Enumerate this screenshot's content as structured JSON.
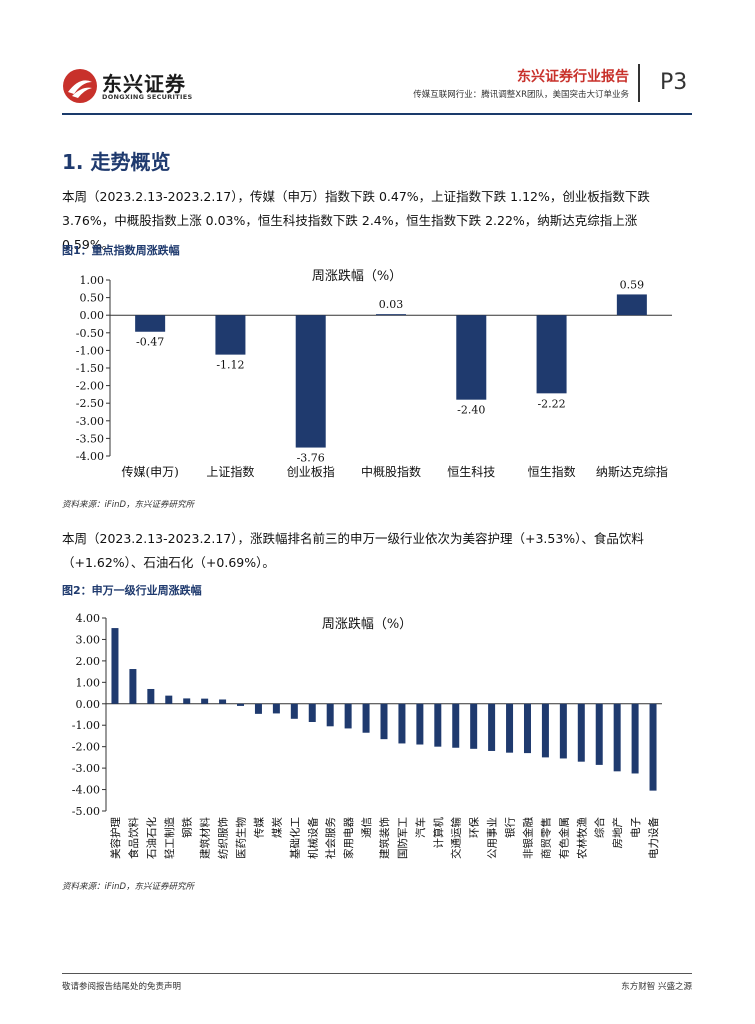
{
  "header": {
    "logo_cn": "东兴证券",
    "logo_en": "DONGXING SECURITIES",
    "report_name": "东兴证券行业报告",
    "report_subtitle": "传媒互联网行业：腾讯调整XR团队，美国突击大订单业务",
    "page_number": "P3"
  },
  "section": {
    "title": "1. 走势概览"
  },
  "paragraph1": "本周（2023.2.13-2023.2.17），传媒（申万）指数下跌 0.47%，上证指数下跌 1.12%，创业板指数下跌 3.76%，中概股指数上涨 0.03%，恒生科技指数下跌 2.4%，恒生指数下跌 2.22%，纳斯达克综指上涨 0.59%。",
  "figure1": {
    "title": "图1：重点指数周涨跌幅",
    "source": "资料来源：iFinD，东兴证券研究所"
  },
  "paragraph2": "本周（2023.2.13-2023.2.17），涨跌幅排名前三的申万一级行业依次为美容护理（+3.53%）、食品饮料（+1.62%）、石油石化（+0.69%）。",
  "figure2": {
    "title": "图2：申万一级行业周涨跌幅",
    "source": "资料来源：iFinD，东兴证券研究所"
  },
  "footer": {
    "left": "敬请参阅报告结尾处的免责声明",
    "right": "东方财智  兴盛之源"
  },
  "colors": {
    "bar": "#1f3a6e",
    "accent_red": "#c8312b"
  },
  "chart_data": [
    {
      "type": "bar",
      "title": "周涨跌幅（%）",
      "categories": [
        "传媒(申万)",
        "上证指数",
        "创业板指",
        "中概股指数",
        "恒生科技",
        "恒生指数",
        "纳斯达克综指"
      ],
      "values": [
        -0.47,
        -1.12,
        -3.76,
        0.03,
        -2.4,
        -2.22,
        0.59
      ],
      "value_labels": [
        "-0.47",
        "-1.12",
        "-3.76",
        "0.03",
        "-2.40",
        "-2.22",
        "0.59"
      ],
      "ylim": [
        -4.0,
        1.0
      ],
      "yticks": [
        "1.00",
        "0.50",
        "0.00",
        "-0.50",
        "-1.00",
        "-1.50",
        "-2.00",
        "-2.50",
        "-3.00",
        "-3.50",
        "-4.00"
      ],
      "grid": false,
      "xlabel": "",
      "ylabel": ""
    },
    {
      "type": "bar",
      "title": "周涨跌幅（%）",
      "categories": [
        "美容护理",
        "食品饮料",
        "石油石化",
        "轻工制造",
        "钢铁",
        "建筑材料",
        "纺织服饰",
        "医药生物",
        "传媒",
        "煤炭",
        "基础化工",
        "机械设备",
        "社会服务",
        "家用电器",
        "通信",
        "建筑装饰",
        "国防军工",
        "汽车",
        "计算机",
        "交通运输",
        "环保",
        "公用事业",
        "银行",
        "非银金融",
        "商贸零售",
        "有色金属",
        "农林牧渔",
        "综合",
        "房地产",
        "电子",
        "电力设备"
      ],
      "values": [
        3.53,
        1.62,
        0.69,
        0.38,
        0.25,
        0.24,
        0.2,
        -0.1,
        -0.47,
        -0.45,
        -0.7,
        -0.85,
        -1.05,
        -1.15,
        -1.35,
        -1.65,
        -1.85,
        -1.9,
        -2.0,
        -2.05,
        -2.1,
        -2.2,
        -2.28,
        -2.3,
        -2.5,
        -2.55,
        -2.7,
        -2.85,
        -3.15,
        -3.25,
        -4.05
      ],
      "ylim": [
        -5.0,
        4.0
      ],
      "yticks": [
        "4.00",
        "3.00",
        "2.00",
        "1.00",
        "0.00",
        "-1.00",
        "-2.00",
        "-3.00",
        "-4.00",
        "-5.00"
      ],
      "grid": false,
      "xlabel": "",
      "ylabel": ""
    }
  ]
}
